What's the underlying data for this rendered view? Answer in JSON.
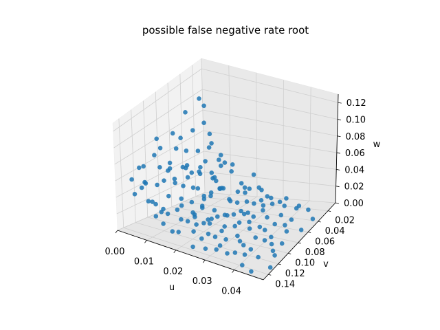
{
  "chart_data": {
    "type": "scatter",
    "title": "possible false negative rate root",
    "xlabel": "u",
    "ylabel": "v",
    "zlabel": "w",
    "xlim": [
      0.0,
      0.05
    ],
    "ylim": [
      0.005,
      0.15
    ],
    "zlim": [
      0.0,
      0.13
    ],
    "x_ticks": [
      "0.00",
      "0.01",
      "0.02",
      "0.03",
      "0.04"
    ],
    "y_ticks": [
      "0.02",
      "0.04",
      "0.06",
      "0.08",
      "0.10",
      "0.12",
      "0.14"
    ],
    "z_ticks": [
      "0.00",
      "0.02",
      "0.04",
      "0.06",
      "0.08",
      "0.10",
      "0.12"
    ],
    "grid": true,
    "colors": {
      "points": "#1f77b4",
      "pane_light": "#f2f2f2",
      "pane_mid": "#ebebeb",
      "pane_dark": "#e6e6e6",
      "grid": "#cfcfcf"
    },
    "series": [
      {
        "points": [
          [
            0.0008,
            0.014,
            0.095
          ],
          [
            0.003,
            0.016,
            0.09
          ],
          [
            0.0015,
            0.04,
            0.092
          ],
          [
            0.006,
            0.03,
            0.08
          ],
          [
            0.001,
            0.08,
            0.07
          ],
          [
            0.004,
            0.06,
            0.075
          ],
          [
            0.002,
            0.12,
            0.065
          ],
          [
            0.005,
            0.1,
            0.06
          ],
          [
            0.007,
            0.14,
            0.055
          ],
          [
            0.0035,
            0.01,
            0.06
          ],
          [
            0.008,
            0.05,
            0.06
          ],
          [
            0.01,
            0.08,
            0.055
          ],
          [
            0.005,
            0.018,
            0.05
          ],
          [
            0.012,
            0.03,
            0.05
          ],
          [
            0.002,
            0.07,
            0.045
          ],
          [
            0.006,
            0.11,
            0.045
          ],
          [
            0.009,
            0.02,
            0.04
          ],
          [
            0.015,
            0.06,
            0.045
          ],
          [
            0.011,
            0.09,
            0.04
          ],
          [
            0.007,
            0.13,
            0.035
          ],
          [
            0.013,
            0.015,
            0.035
          ],
          [
            0.018,
            0.04,
            0.04
          ],
          [
            0.004,
            0.05,
            0.03
          ],
          [
            0.016,
            0.1,
            0.03
          ],
          [
            0.02,
            0.07,
            0.035
          ],
          [
            0.003,
            0.025,
            0.025
          ],
          [
            0.01,
            0.12,
            0.025
          ],
          [
            0.022,
            0.02,
            0.03
          ],
          [
            0.014,
            0.14,
            0.02
          ],
          [
            0.025,
            0.05,
            0.025
          ],
          [
            0.008,
            0.08,
            0.02
          ],
          [
            0.019,
            0.11,
            0.02
          ],
          [
            0.027,
            0.03,
            0.02
          ],
          [
            0.006,
            0.012,
            0.015
          ],
          [
            0.012,
            0.06,
            0.015
          ],
          [
            0.023,
            0.09,
            0.015
          ],
          [
            0.03,
            0.07,
            0.015
          ],
          [
            0.017,
            0.025,
            0.012
          ],
          [
            0.028,
            0.12,
            0.01
          ],
          [
            0.033,
            0.04,
            0.012
          ],
          [
            0.005,
            0.1,
            0.01
          ],
          [
            0.015,
            0.13,
            0.008
          ],
          [
            0.021,
            0.045,
            0.01
          ],
          [
            0.035,
            0.06,
            0.008
          ],
          [
            0.009,
            0.035,
            0.008
          ],
          [
            0.026,
            0.015,
            0.006
          ],
          [
            0.038,
            0.08,
            0.006
          ],
          [
            0.032,
            0.1,
            0.005
          ],
          [
            0.011,
            0.075,
            0.005
          ],
          [
            0.04,
            0.03,
            0.005
          ],
          [
            0.018,
            0.09,
            0.004
          ],
          [
            0.042,
            0.05,
            0.004
          ],
          [
            0.024,
            0.14,
            0.004
          ],
          [
            0.036,
            0.11,
            0.003
          ],
          [
            0.044,
            0.07,
            0.003
          ],
          [
            0.029,
            0.055,
            0.003
          ],
          [
            0.046,
            0.09,
            0.002
          ],
          [
            0.039,
            0.02,
            0.002
          ],
          [
            0.048,
            0.04,
            0.002
          ],
          [
            0.034,
            0.13,
            0.002
          ],
          [
            0.043,
            0.12,
            0.001
          ],
          [
            0.047,
            0.11,
            0.001
          ],
          [
            0.041,
            0.14,
            0.001
          ],
          [
            0.049,
            0.13,
            0.001
          ],
          [
            0.045,
            0.145,
            0.001
          ],
          [
            0.002,
            0.09,
            0.085
          ],
          [
            0.0045,
            0.07,
            0.068
          ],
          [
            0.0065,
            0.09,
            0.062
          ],
          [
            0.0085,
            0.11,
            0.052
          ],
          [
            0.0105,
            0.14,
            0.042
          ],
          [
            0.0025,
            0.135,
            0.058
          ],
          [
            0.0055,
            0.145,
            0.048
          ],
          [
            0.0075,
            0.025,
            0.058
          ],
          [
            0.0095,
            0.045,
            0.048
          ],
          [
            0.0115,
            0.065,
            0.046
          ],
          [
            0.0135,
            0.085,
            0.038
          ],
          [
            0.0155,
            0.115,
            0.032
          ],
          [
            0.0175,
            0.055,
            0.028
          ],
          [
            0.0195,
            0.03,
            0.024
          ],
          [
            0.0215,
            0.12,
            0.018
          ],
          [
            0.0235,
            0.035,
            0.022
          ],
          [
            0.0255,
            0.085,
            0.016
          ],
          [
            0.0275,
            0.1,
            0.012
          ],
          [
            0.0295,
            0.025,
            0.01
          ],
          [
            0.0315,
            0.05,
            0.009
          ],
          [
            0.0335,
            0.085,
            0.007
          ],
          [
            0.0355,
            0.03,
            0.006
          ],
          [
            0.0375,
            0.095,
            0.005
          ],
          [
            0.0395,
            0.115,
            0.004
          ],
          [
            0.0415,
            0.06,
            0.003
          ],
          [
            0.0435,
            0.025,
            0.002
          ],
          [
            0.0455,
            0.105,
            0.002
          ],
          [
            0.0475,
            0.06,
            0.001
          ],
          [
            0.0012,
            0.06,
            0.078
          ],
          [
            0.0032,
            0.1,
            0.072
          ],
          [
            0.0052,
            0.125,
            0.052
          ],
          [
            0.0072,
            0.065,
            0.05
          ],
          [
            0.0092,
            0.095,
            0.044
          ],
          [
            0.0112,
            0.02,
            0.038
          ],
          [
            0.0132,
            0.05,
            0.034
          ],
          [
            0.0152,
            0.075,
            0.026
          ],
          [
            0.0172,
            0.125,
            0.022
          ],
          [
            0.0192,
            0.14,
            0.016
          ],
          [
            0.0212,
            0.06,
            0.02
          ],
          [
            0.0232,
            0.105,
            0.014
          ],
          [
            0.0252,
            0.13,
            0.01
          ],
          [
            0.0272,
            0.045,
            0.012
          ],
          [
            0.0292,
            0.09,
            0.009
          ],
          [
            0.0312,
            0.135,
            0.006
          ],
          [
            0.0332,
            0.015,
            0.006
          ],
          [
            0.0352,
            0.075,
            0.005
          ],
          [
            0.0372,
            0.045,
            0.004
          ],
          [
            0.0392,
            0.125,
            0.003
          ],
          [
            0.0412,
            0.085,
            0.003
          ],
          [
            0.0432,
            0.095,
            0.002
          ],
          [
            0.0018,
            0.03,
            0.07
          ],
          [
            0.0038,
            0.12,
            0.05
          ],
          [
            0.0058,
            0.08,
            0.04
          ],
          [
            0.0078,
            0.1,
            0.03
          ],
          [
            0.0098,
            0.06,
            0.025
          ],
          [
            0.0118,
            0.105,
            0.02
          ],
          [
            0.0138,
            0.035,
            0.018
          ],
          [
            0.0158,
            0.095,
            0.014
          ],
          [
            0.0178,
            0.07,
            0.01
          ],
          [
            0.0198,
            0.085,
            0.008
          ],
          [
            0.0218,
            0.01,
            0.012
          ],
          [
            0.0238,
            0.065,
            0.007
          ],
          [
            0.0258,
            0.025,
            0.006
          ],
          [
            0.0278,
            0.075,
            0.005
          ],
          [
            0.0298,
            0.11,
            0.004
          ],
          [
            0.0318,
            0.02,
            0.004
          ],
          [
            0.0338,
            0.105,
            0.003
          ],
          [
            0.0358,
            0.125,
            0.002
          ],
          [
            0.0378,
            0.06,
            0.002
          ],
          [
            0.0398,
            0.09,
            0.001
          ],
          [
            0.0026,
            0.045,
            0.055
          ],
          [
            0.0046,
            0.085,
            0.05
          ],
          [
            0.0066,
            0.055,
            0.038
          ],
          [
            0.0086,
            0.015,
            0.032
          ],
          [
            0.0106,
            0.035,
            0.028
          ],
          [
            0.0126,
            0.125,
            0.024
          ],
          [
            0.0146,
            0.045,
            0.022
          ],
          [
            0.0166,
            0.085,
            0.018
          ],
          [
            0.0186,
            0.02,
            0.015
          ],
          [
            0.0206,
            0.095,
            0.012
          ],
          [
            0.0226,
            0.075,
            0.01
          ],
          [
            0.0246,
            0.115,
            0.008
          ],
          [
            0.0266,
            0.06,
            0.007
          ],
          [
            0.0286,
            0.035,
            0.006
          ],
          [
            0.0306,
            0.125,
            0.005
          ],
          [
            0.0014,
            0.11,
            0.062
          ],
          [
            0.0034,
            0.055,
            0.042
          ],
          [
            0.0054,
            0.035,
            0.036
          ],
          [
            0.0074,
            0.12,
            0.028
          ],
          [
            0.0094,
            0.13,
            0.02
          ],
          [
            0.0114,
            0.045,
            0.016
          ],
          [
            0.0134,
            0.07,
            0.012
          ],
          [
            0.0154,
            0.105,
            0.01
          ],
          [
            0.0174,
            0.04,
            0.008
          ],
          [
            0.0194,
            0.115,
            0.006
          ],
          [
            0.0214,
            0.03,
            0.005
          ],
          [
            0.0234,
            0.05,
            0.004
          ],
          [
            0.0254,
            0.095,
            0.003
          ],
          [
            0.0274,
            0.135,
            0.003
          ],
          [
            0.0294,
            0.065,
            0.002
          ]
        ]
      }
    ]
  }
}
